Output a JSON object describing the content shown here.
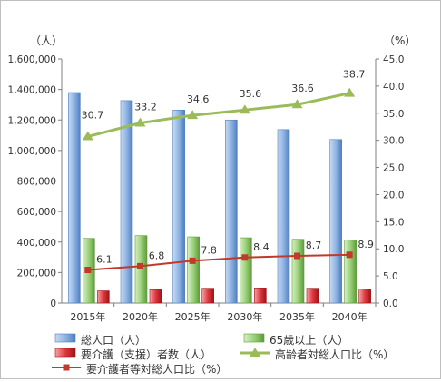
{
  "chart_data": {
    "type": "bar",
    "categories": [
      "2015年",
      "2020年",
      "2025年",
      "2030年",
      "2035年",
      "2040年"
    ],
    "left_axis": {
      "unit_label": "（人）",
      "range": [
        0,
        1600000
      ],
      "ticks": [
        "0",
        "200,000",
        "400,000",
        "600,000",
        "800,000",
        "1,000,000",
        "1,200,000",
        "1,400,000",
        "1,600,000"
      ]
    },
    "right_axis": {
      "unit_label": "（%）",
      "range": [
        0,
        45
      ],
      "ticks": [
        "0.0",
        "5.0",
        "10.0",
        "15.0",
        "20.0",
        "25.0",
        "30.0",
        "35.0",
        "40.0",
        "45.0"
      ]
    },
    "series": [
      {
        "name": "総人口(人)",
        "kind": "bar",
        "axis": "left",
        "color": "#8fb4e3",
        "values": [
          1380000,
          1327000,
          1265000,
          1200000,
          1137000,
          1072000
        ]
      },
      {
        "name": "65歳以上(人)",
        "kind": "bar",
        "axis": "left",
        "color": "#9bd17a",
        "values": [
          424000,
          442000,
          434000,
          428000,
          418000,
          412000
        ]
      },
      {
        "name": "要介護(支援)者数(人)",
        "kind": "bar",
        "axis": "left",
        "color": "#e0393e",
        "values": [
          80000,
          87000,
          97000,
          99000,
          97000,
          93000
        ]
      },
      {
        "name": "高齢者対総人口比(%)",
        "kind": "line",
        "axis": "right",
        "color": "#9bbb59",
        "marker": "triangle",
        "values": [
          30.7,
          33.2,
          34.6,
          35.6,
          36.6,
          38.7
        ],
        "labels": [
          "30.7",
          "33.2",
          "34.6",
          "35.6",
          "36.6",
          "38.7"
        ]
      },
      {
        "name": "要介護者等対総人口比(%)",
        "kind": "line",
        "axis": "right",
        "color": "#c0392b",
        "marker": "square",
        "values": [
          6.1,
          6.8,
          7.8,
          8.4,
          8.7,
          8.9
        ],
        "labels": [
          "6.1",
          "6.8",
          "7.8",
          "8.4",
          "8.7",
          "8.9"
        ]
      }
    ],
    "legend": {
      "position": "bottom",
      "items": [
        {
          "label": "総人口（人）",
          "symbol": "bar-blue"
        },
        {
          "label": "65歳以上（人）",
          "symbol": "bar-green"
        },
        {
          "label": "要介護（支援）者数（人）",
          "symbol": "bar-red"
        },
        {
          "label": "高齢者対総人口比（%）",
          "symbol": "line-green-triangle"
        },
        {
          "label": "要介護者等対総人口比（%）",
          "symbol": "line-red-square"
        }
      ]
    },
    "grid": false
  }
}
